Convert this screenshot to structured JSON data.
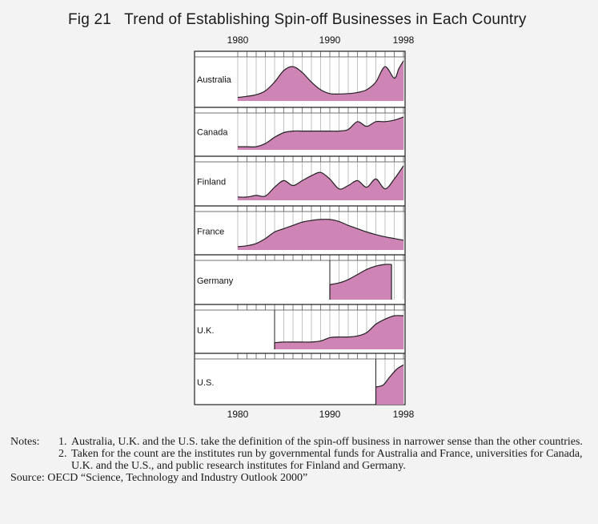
{
  "title": "Fig 21   Trend of Establishing Spin-off Businesses in Each Country",
  "chart_data": {
    "type": "area",
    "subtype": "small-multiples",
    "x_ticks": [
      "1980",
      "1990",
      "1998"
    ],
    "xlim": [
      1980,
      1998
    ],
    "y_scale": "relative (no numeric axis printed)",
    "fill_color": "#cf84b6",
    "grid": "vertical gridline at every year",
    "panels": [
      {
        "name": "Australia",
        "start_year": 1980,
        "x": [
          1980,
          1981,
          1982,
          1983,
          1984,
          1985,
          1986,
          1987,
          1988,
          1989,
          1990,
          1991,
          1992,
          1993,
          1994,
          1995,
          1996,
          1997,
          1997.5,
          1998
        ],
        "values": [
          0.05,
          0.08,
          0.12,
          0.22,
          0.45,
          0.75,
          0.85,
          0.7,
          0.45,
          0.25,
          0.15,
          0.14,
          0.15,
          0.18,
          0.25,
          0.45,
          0.85,
          0.55,
          0.8,
          1.0
        ]
      },
      {
        "name": "Canada",
        "start_year": 1980,
        "x": [
          1980,
          1981,
          1982,
          1983,
          1984,
          1985,
          1986,
          1987,
          1988,
          1989,
          1990,
          1991,
          1992,
          1993,
          1994,
          1995,
          1996,
          1997,
          1998
        ],
        "values": [
          0.05,
          0.05,
          0.05,
          0.15,
          0.35,
          0.5,
          0.55,
          0.55,
          0.55,
          0.55,
          0.55,
          0.55,
          0.6,
          0.85,
          0.7,
          0.85,
          0.85,
          0.9,
          1.0
        ]
      },
      {
        "name": "Finland",
        "start_year": 1980,
        "x": [
          1980,
          1981,
          1982,
          1983,
          1984,
          1985,
          1986,
          1987,
          1988,
          1989,
          1990,
          1991,
          1992,
          1993,
          1994,
          1995,
          1996,
          1997,
          1998
        ],
        "values": [
          0.05,
          0.05,
          0.1,
          0.08,
          0.35,
          0.55,
          0.4,
          0.55,
          0.7,
          0.8,
          0.6,
          0.3,
          0.4,
          0.55,
          0.35,
          0.6,
          0.3,
          0.6,
          1.0
        ]
      },
      {
        "name": "France",
        "start_year": 1980,
        "x": [
          1980,
          1981,
          1982,
          1983,
          1984,
          1985,
          1986,
          1987,
          1988,
          1989,
          1990,
          1991,
          1992,
          1993,
          1994,
          1995,
          1996,
          1997,
          1998
        ],
        "values": [
          0.05,
          0.08,
          0.15,
          0.3,
          0.5,
          0.6,
          0.7,
          0.8,
          0.85,
          0.88,
          0.88,
          0.82,
          0.7,
          0.6,
          0.5,
          0.42,
          0.35,
          0.3,
          0.25
        ]
      },
      {
        "name": "Germany",
        "start_year": 1990,
        "end_year": 1996.7,
        "x": [
          1990,
          1991,
          1992,
          1993,
          1994,
          1995,
          1996,
          1996.7
        ],
        "values": [
          0.4,
          0.45,
          0.55,
          0.7,
          0.85,
          0.95,
          1.0,
          1.0
        ]
      },
      {
        "name": "U.K.",
        "start_year": 1984,
        "x": [
          1984,
          1985,
          1986,
          1987,
          1988,
          1989,
          1990,
          1991,
          1992,
          1993,
          1994,
          1995,
          1996,
          1997,
          1998
        ],
        "values": [
          0.15,
          0.17,
          0.17,
          0.17,
          0.17,
          0.2,
          0.3,
          0.32,
          0.32,
          0.35,
          0.45,
          0.7,
          0.85,
          0.95,
          0.95
        ]
      },
      {
        "name": "U.S.",
        "start_year": 1995,
        "x": [
          1995,
          1995.8,
          1996.5,
          1997.3,
          1998
        ],
        "values": [
          0.4,
          0.45,
          0.65,
          0.85,
          0.95
        ]
      }
    ]
  },
  "notes": {
    "label": "Notes:",
    "items": [
      {
        "num": "1.",
        "text": "Australia, U.K. and the U.S. take the definition of the spin-off business in narrower sense than the other countries."
      },
      {
        "num": "2.",
        "text": "Taken for the count are the institutes run by governmental funds for Australia and France, universities for Canada, U.K. and the U.S., and public research institutes for Finland and Germany."
      }
    ],
    "source": "Source: OECD “Science, Technology and Industry Outlook 2000”"
  }
}
